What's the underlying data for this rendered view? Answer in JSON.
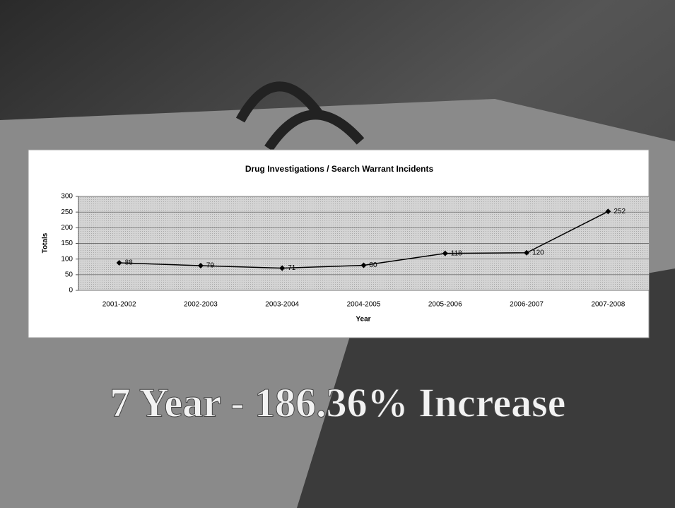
{
  "chart_data": {
    "type": "line",
    "title": "Drug Investigations / Search Warrant Incidents",
    "x_label": "Year",
    "y_label": "Totals",
    "categories": [
      "2001-2002",
      "2002-2003",
      "2003-2004",
      "2004-2005",
      "2005-2006",
      "2006-2007",
      "2007-2008"
    ],
    "values": [
      88,
      79,
      71,
      80,
      118,
      120,
      252
    ],
    "color": "#000000",
    "ylim": [
      0,
      300
    ],
    "yticks": [
      0,
      50,
      100,
      150,
      200,
      250,
      300
    ],
    "grid": true
  },
  "caption": "7 Year - 186.36% Increase"
}
